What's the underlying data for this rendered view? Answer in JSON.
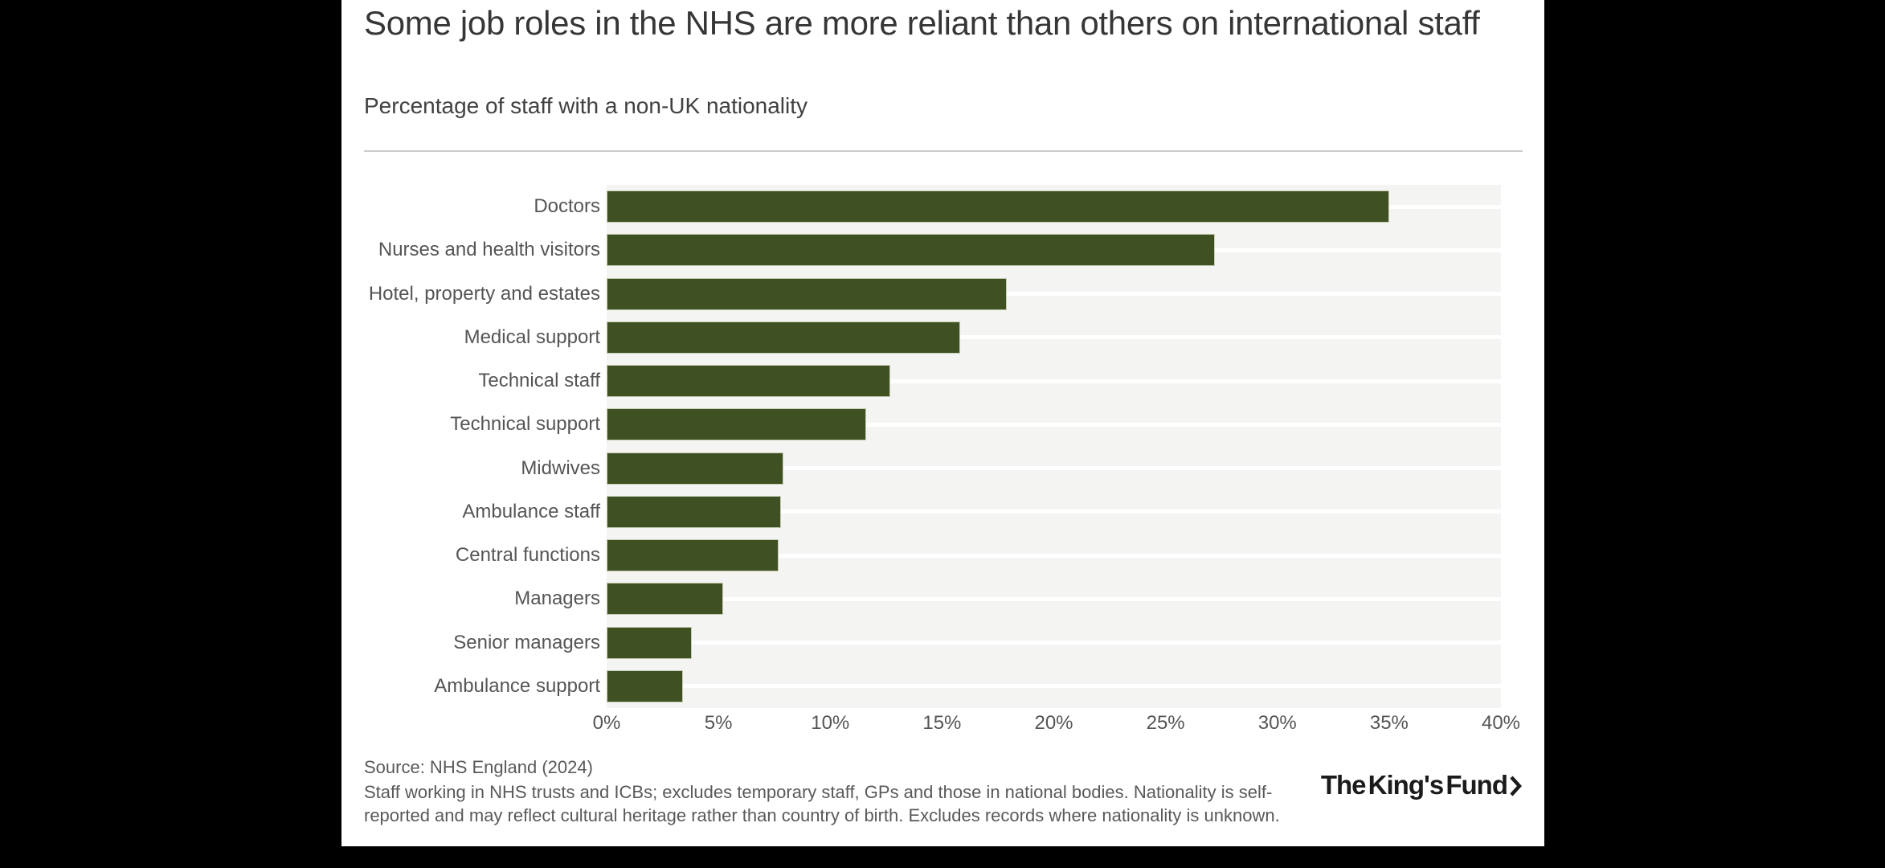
{
  "chart_data": {
    "type": "bar",
    "orientation": "horizontal",
    "title": "Some job roles in the NHS are more reliant than others on international staff",
    "subtitle": "Percentage of staff with a non-UK nationality",
    "categories": [
      "Doctors",
      "Nurses and health visitors",
      "Hotel, property and estates",
      "Medical support",
      "Technical staff",
      "Technical support",
      "Midwives",
      "Ambulance staff",
      "Central functions",
      "Managers",
      "Senior managers",
      "Ambulance support"
    ],
    "values": [
      35.0,
      27.2,
      17.9,
      15.8,
      12.7,
      11.6,
      7.9,
      7.8,
      7.7,
      5.2,
      3.8,
      3.4
    ],
    "xlim": [
      0,
      40
    ],
    "xtick_labels": [
      "0%",
      "5%",
      "10%",
      "15%",
      "20%",
      "25%",
      "30%",
      "35%",
      "40%"
    ],
    "grid": "white horizontal gridline at each category row center",
    "legend": "none",
    "bar_color": "#3f5122",
    "plot_background": "#f4f4f2"
  },
  "footer": {
    "source": "Source: NHS England (2024)",
    "footnote": "Staff working in NHS trusts and ICBs; excludes temporary staff, GPs and those in national bodies. Nationality is self-reported and may reflect cultural heritage rather than country of birth. Excludes records where nationality is unknown."
  },
  "branding": {
    "logo_text": "The King's Fund"
  },
  "colors": {
    "bar": "#3f5122",
    "plot_background": "#f4f4f2",
    "title_text": "#363636",
    "label_text": "#555555",
    "footer_text": "#58595b",
    "card_background": "#ffffff",
    "page_background": "#000000"
  }
}
